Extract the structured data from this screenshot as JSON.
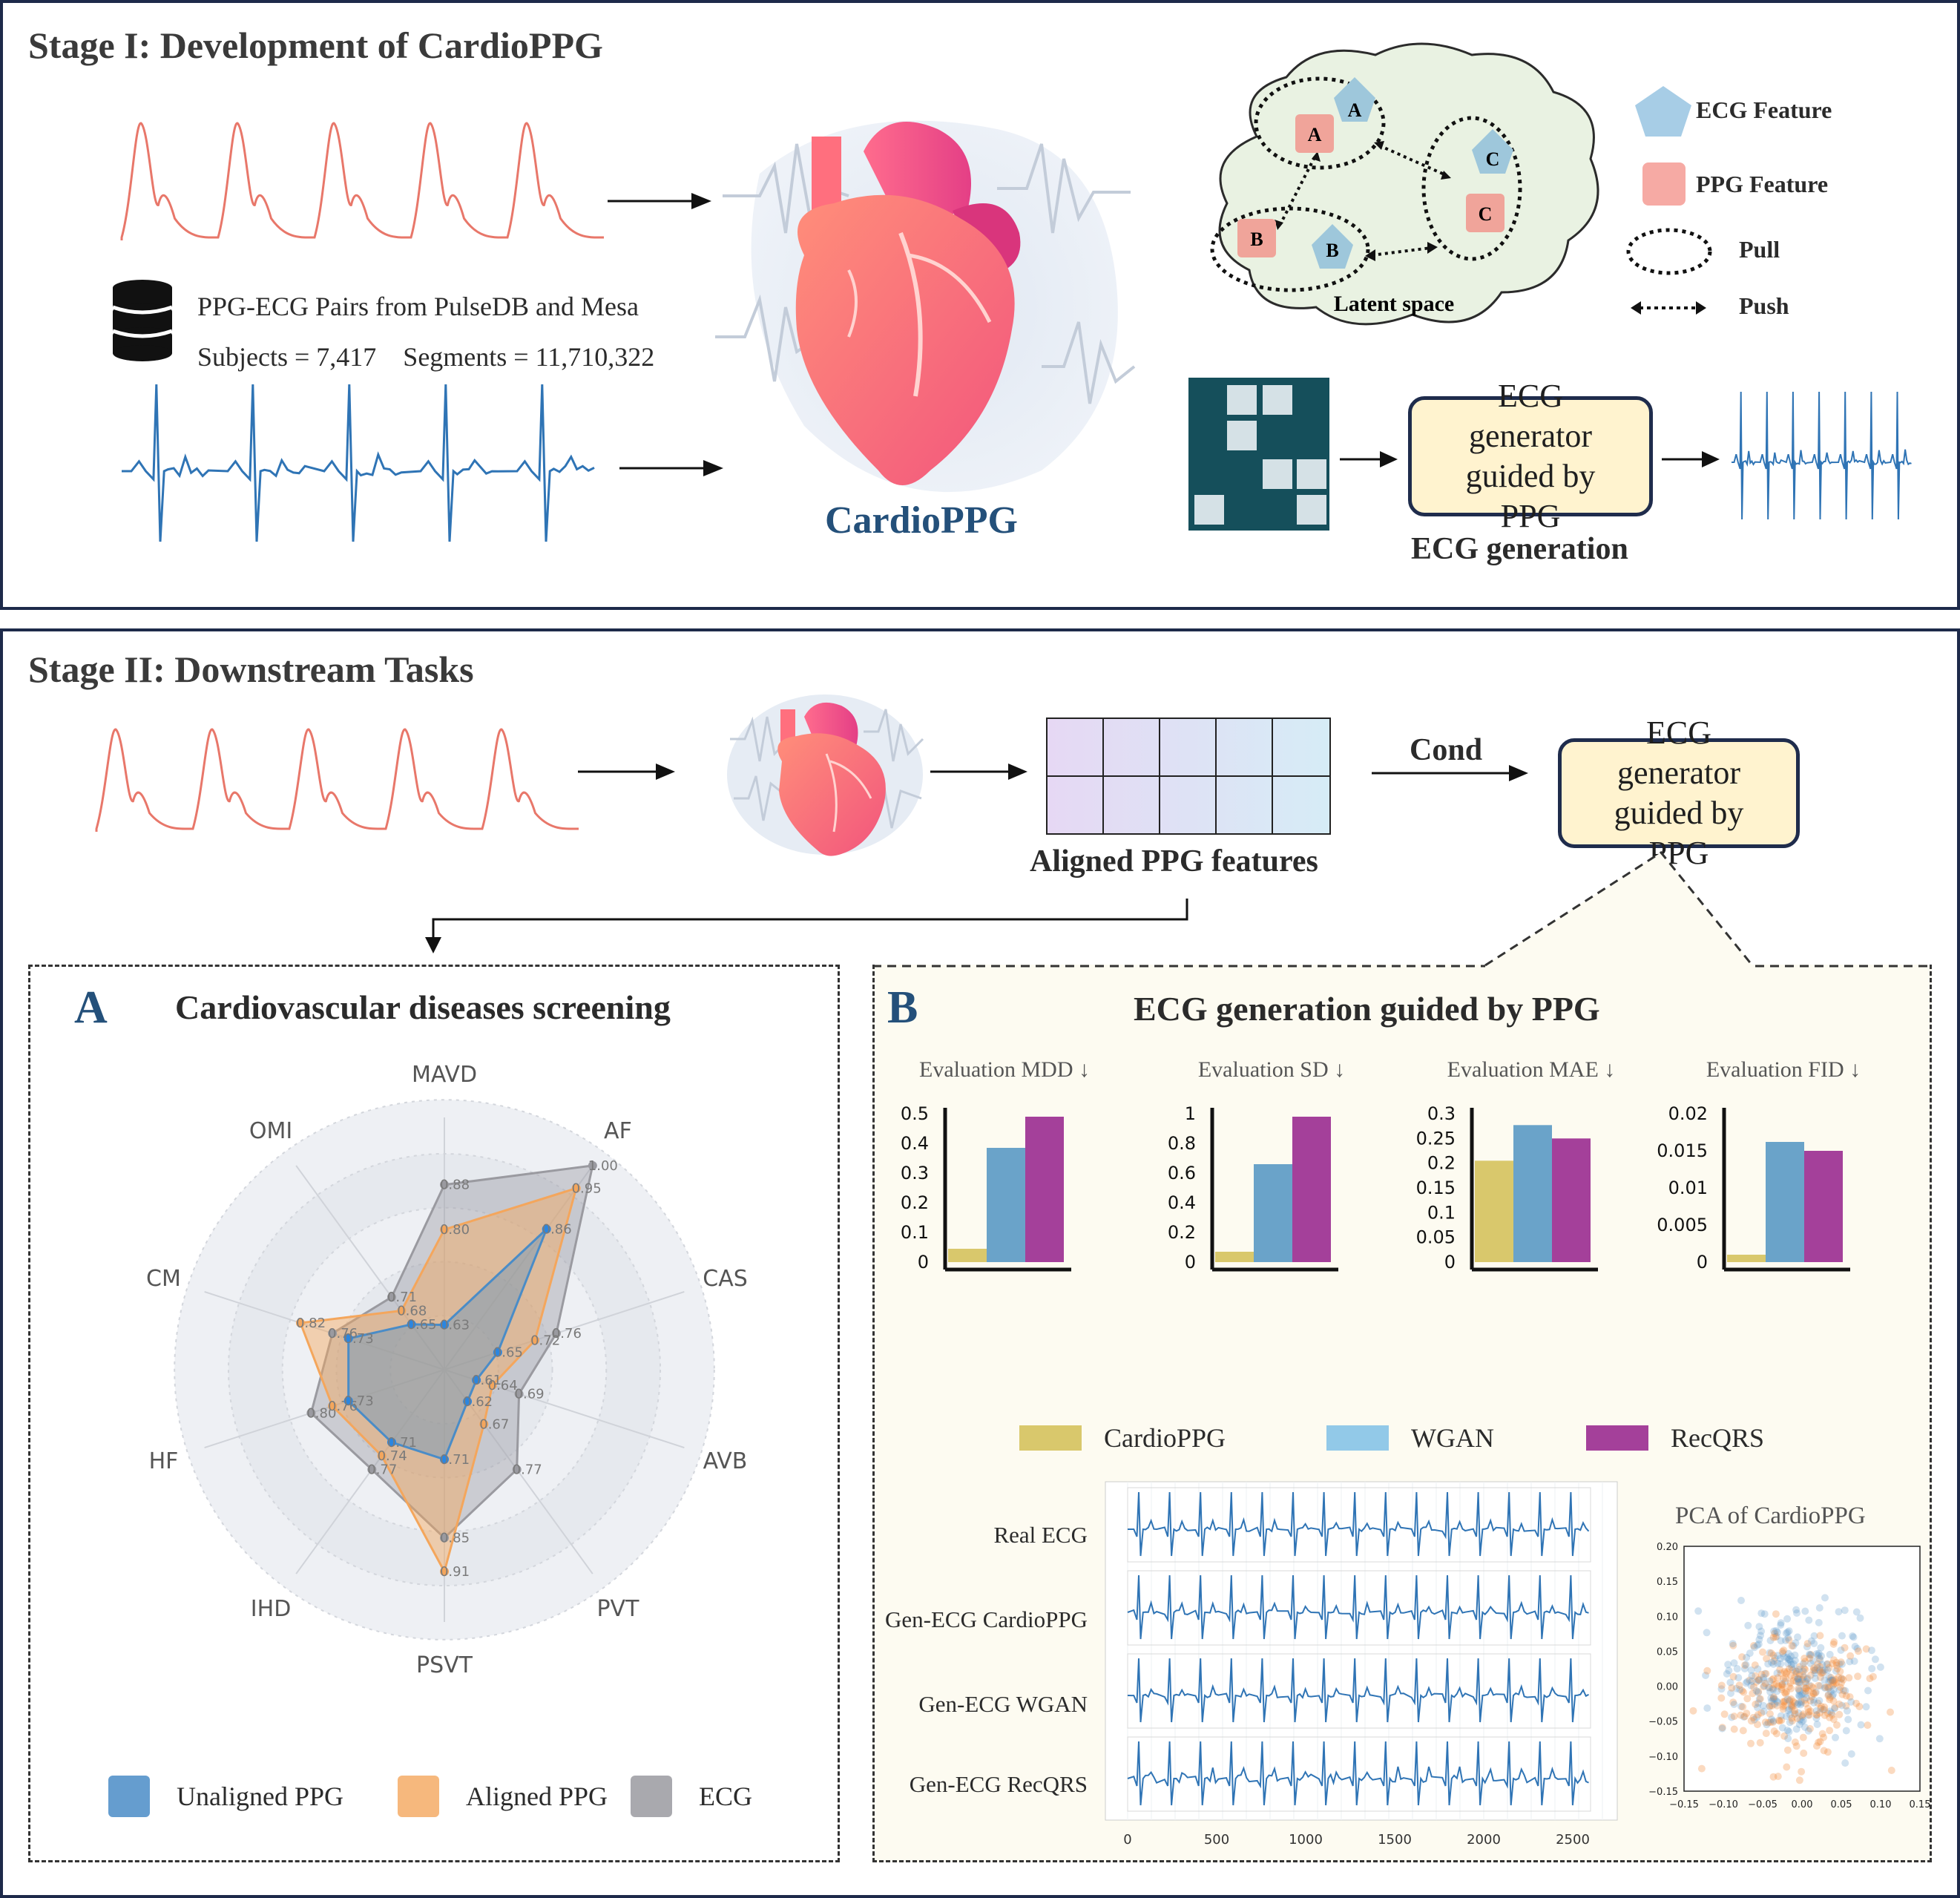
{
  "stage1": {
    "title": "Stage I: Development of CardioPPG",
    "dataset_line1": "PPG-ECG Pairs from PulseDB and Mesa",
    "dataset_line2": "Subjects = 7,417    Segments = 11,710,322",
    "model_name": "CardioPPG",
    "latent_label": "Latent space",
    "latent_nodes": [
      "A",
      "A",
      "B",
      "B",
      "C",
      "C"
    ],
    "legend": {
      "ecg_feature": "ECG Feature",
      "ppg_feature": "PPG Feature",
      "pull": "Pull",
      "push": "Push"
    },
    "generator_box": "ECG generator guided by PPG",
    "generation_label": "ECG generation"
  },
  "stage2": {
    "title": "Stage II: Downstream Tasks",
    "aligned_features_label": "Aligned PPG features",
    "cond_label": "Cond",
    "generator_box": "ECG generator guided by PPG"
  },
  "panel_a": {
    "letter": "A",
    "title": "Cardiovascular diseases screening",
    "legend": [
      "Unaligned PPG",
      "Aligned PPG",
      "ECG"
    ]
  },
  "panel_b": {
    "letter": "B",
    "title": "ECG generation guided by PPG",
    "legend": [
      "CardioPPG",
      "WGAN",
      "RecQRS"
    ],
    "ecg_rows": [
      "Real ECG",
      "Gen-ECG CardioPPG",
      "Gen-ECG WGAN",
      "Gen-ECG RecQRS"
    ],
    "pca_title": "PCA of CardioPPG"
  },
  "colors": {
    "frame": "#1d2a4a",
    "ppg_wave": "#e8776a",
    "ecg_wave": "#2f74b5",
    "unaligned": "#4a8cc7",
    "aligned": "#f4a65c",
    "ecg_series": "#9a9aa0",
    "cardioppg_bar": "#d9c86c",
    "wgan_bar": "#6aa3c9",
    "recqrs_bar": "#a4409a",
    "generator_fill": "#fff3cf"
  },
  "chart_data": [
    {
      "type": "radar",
      "categories": [
        "MAVD",
        "AF",
        "CAS",
        "AVB",
        "PVT",
        "PSVT",
        "IHD",
        "HF",
        "CM",
        "OMI"
      ],
      "series": [
        {
          "name": "Unaligned PPG",
          "values": [
            0.63,
            0.86,
            0.65,
            0.61,
            0.62,
            0.71,
            0.71,
            0.73,
            0.73,
            0.65
          ]
        },
        {
          "name": "Aligned PPG",
          "values": [
            0.8,
            0.95,
            0.72,
            0.64,
            0.67,
            0.91,
            0.74,
            0.76,
            0.82,
            0.68
          ]
        },
        {
          "name": "ECG",
          "values": [
            0.88,
            1.0,
            0.76,
            0.69,
            0.77,
            0.85,
            0.77,
            0.8,
            0.76,
            0.71
          ]
        }
      ]
    },
    {
      "type": "bar",
      "title": "Evaluation MDD ↓",
      "categories": [
        "CardioPPG",
        "WGAN",
        "RecQRS"
      ],
      "values": [
        0.045,
        0.385,
        0.49
      ],
      "ylim": [
        0,
        0.5
      ],
      "yticks": [
        "0",
        "0.1",
        "0.2",
        "0.3",
        "0.4",
        "0.5"
      ]
    },
    {
      "type": "bar",
      "title": "Evaluation SD ↓",
      "categories": [
        "CardioPPG",
        "WGAN",
        "RecQRS"
      ],
      "values": [
        0.07,
        0.66,
        0.98
      ],
      "ylim": [
        0,
        1
      ],
      "yticks": [
        "0",
        "0.2",
        "0.4",
        "0.6",
        "0.8",
        "1"
      ]
    },
    {
      "type": "bar",
      "title": "Evaluation MAE ↓",
      "categories": [
        "CardioPPG",
        "WGAN",
        "RecQRS"
      ],
      "values": [
        0.205,
        0.277,
        0.25
      ],
      "ylim": [
        0,
        0.3
      ],
      "yticks": [
        "0",
        "0.05",
        "0.1",
        "0.15",
        "0.2",
        "0.25",
        "0.3"
      ]
    },
    {
      "type": "bar",
      "title": "Evaluation FID ↓",
      "categories": [
        "CardioPPG",
        "WGAN",
        "RecQRS"
      ],
      "values": [
        0.001,
        0.0162,
        0.015
      ],
      "ylim": [
        0,
        0.02
      ],
      "yticks": [
        "0",
        "0.005",
        "0.01",
        "0.015",
        "0.02"
      ]
    },
    {
      "type": "line",
      "xticks": [
        "0",
        "500",
        "1000",
        "1500",
        "2000",
        "2500"
      ],
      "xlim": [
        0,
        2600
      ]
    },
    {
      "type": "scatter",
      "title": "PCA of CardioPPG",
      "xticks": [
        "−0.15",
        "−0.10",
        "−0.05",
        "0.00",
        "0.05",
        "0.10",
        "0.15"
      ],
      "yticks": [
        "0.20",
        "0.15",
        "0.10",
        "0.05",
        "0.00",
        "−0.05",
        "−0.10",
        "−0.15"
      ],
      "xlim": [
        -0.15,
        0.15
      ],
      "ylim": [
        -0.15,
        0.2
      ]
    }
  ]
}
